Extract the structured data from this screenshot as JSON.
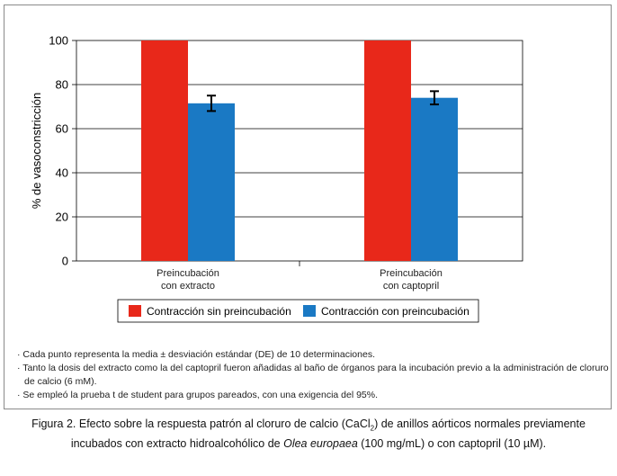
{
  "chart_data": {
    "type": "bar",
    "ylabel": "% de vasoconstricción",
    "ylim": [
      0,
      100
    ],
    "yticks": [
      0,
      20,
      40,
      60,
      80,
      100
    ],
    "grid": true,
    "categories": [
      [
        "Preincubación",
        "con extracto"
      ],
      [
        "Preincubación",
        "con captopril"
      ]
    ],
    "series": [
      {
        "name": "Contracción sin preincubación",
        "color": "#e8281a",
        "values": [
          100,
          100
        ],
        "errors": [
          0,
          0
        ]
      },
      {
        "name": "Contracción con preincubación",
        "color": "#1a79c4",
        "values": [
          71.5,
          74
        ],
        "errors": [
          3.5,
          3
        ]
      }
    ],
    "legend_position": "bottom"
  },
  "notes": [
    "· Cada punto representa la media ± desviación estándar (DE) de 10 determinaciones.",
    "· Tanto la dosis del extracto como la del captopril fueron añadidas al baño de órganos para la incubación previo a la administración de cloruro de calcio (6 mM).",
    "· Se empleó la prueba t de student para grupos pareados, con una exigencia del 95%."
  ],
  "caption": {
    "part1": "Figura 2. Efecto sobre la respuesta patrón al cloruro de calcio (CaCl",
    "sub": "2",
    "part2": ") de anillos aórticos normales previamente incubados con extracto hidroalcohólico de ",
    "species": "Olea europaea",
    "part3": " (100 mg/mL) o con captopril (10 µM)."
  }
}
